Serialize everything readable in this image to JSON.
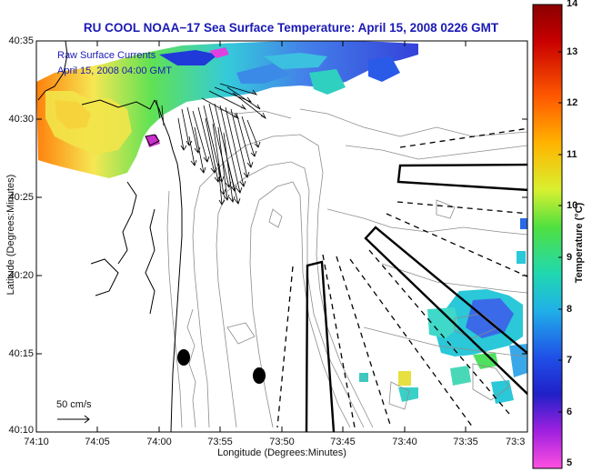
{
  "title": "RU COOL  NOAA−17  Sea Surface Temperature:  April 15, 2008 0226 GMT",
  "legend": {
    "line1": "Raw Surface Currents",
    "line2": "April 15, 2008 04:00 GMT"
  },
  "scale_label": "50 cm/s",
  "axes": {
    "xlabel": "Longitude (Degrees:Minutes)",
    "ylabel": "Latitude (Degrees:Minutes)",
    "xticks": [
      "74:10",
      "74:05",
      "74:00",
      "73:55",
      "73:50",
      "73:45",
      "73:40",
      "73:35",
      "73:3"
    ],
    "yticks": [
      "40:35",
      "40:30",
      "40:25",
      "40:20",
      "40:15",
      "40:10"
    ]
  },
  "colorbar": {
    "label": "Temperature (°C)",
    "ticks": [
      "14",
      "13",
      "12",
      "11",
      "10",
      "9",
      "8",
      "7",
      "6",
      "5"
    ],
    "min": 5,
    "max": 14
  },
  "colors": {
    "title": "#1a1ab4",
    "coast": "#000000",
    "bathymetry": "#888888"
  },
  "icons": [
    "coastline",
    "bathymetry-contours",
    "current-vectors",
    "buoy-markers",
    "sst-patches"
  ]
}
